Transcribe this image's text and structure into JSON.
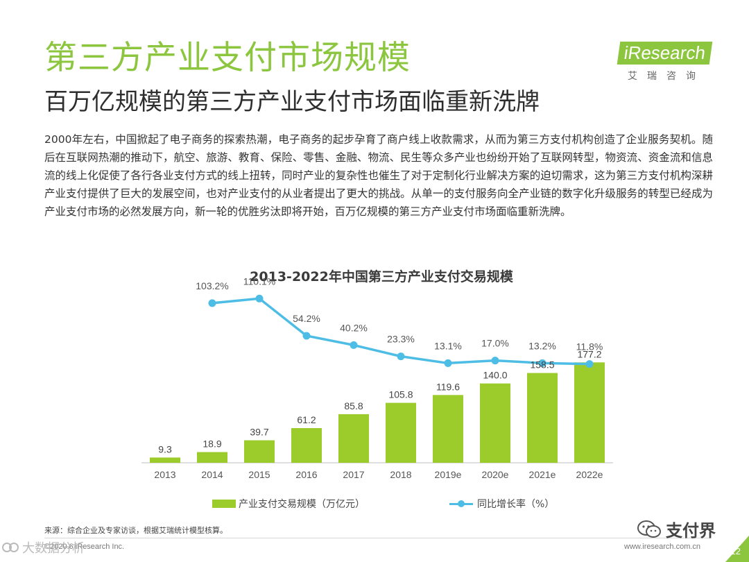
{
  "page": {
    "title": "第三方产业支付市场规模",
    "subtitle": "百万亿规模的第三方产业支付市场面临重新洗牌",
    "body": "2000年左右，中国掀起了电子商务的探索热潮，电子商务的起步孕育了商户线上收款需求，从而为第三方支付机构创造了企业服务契机。随后在互联网热潮的推动下，航空、旅游、教育、保险、零售、金融、物流、民生等众多产业也纷纷开始了互联网转型，物资流、资金流和信息流的线上化促使了各行各业支付方式的线上扭转，同时产业的复杂性也催生了对于定制化行业解决方案的迫切需求，这为第三方支付机构深耕产业支付提供了巨大的发展空间，也对产业支付的从业者提出了更大的挑战。从单一的支付服务向全产业链的数字化升级服务的转型已经成为产业支付市场的必然发展方向，新一轮的优胜劣汰即将开始，百万亿规模的第三方产业支付市场面临重新洗牌。"
  },
  "logo": {
    "name": "iResearch",
    "cn": "艾瑞咨询"
  },
  "chart_data": {
    "type": "bar",
    "title": "2013-2022年中国第三方产业支付交易规模",
    "categories": [
      "2013",
      "2014",
      "2015",
      "2016",
      "2017",
      "2018",
      "2019e",
      "2020e",
      "2021e",
      "2022e"
    ],
    "series": [
      {
        "name": "产业支付交易规模（万亿元）",
        "type": "bar",
        "color": "#9ccc2c",
        "values": [
          9.3,
          18.9,
          39.7,
          61.2,
          85.8,
          105.8,
          119.6,
          140.0,
          158.5,
          177.2
        ],
        "labels": [
          "9.3",
          "18.9",
          "39.7",
          "61.2",
          "85.8",
          "105.8",
          "119.6",
          "140.0",
          "158.5",
          "177.2"
        ]
      },
      {
        "name": "同比增长率（%）",
        "type": "line",
        "color": "#4dbde5",
        "values": [
          null,
          103.2,
          110.1,
          54.2,
          40.2,
          23.3,
          13.1,
          17.0,
          13.2,
          11.8
        ],
        "labels": [
          "",
          "103.2%",
          "110.1%",
          "54.2%",
          "40.2%",
          "23.3%",
          "13.1%",
          "17.0%",
          "13.2%",
          "11.8%"
        ]
      }
    ],
    "ylim": [
      0,
      180
    ],
    "y2lim": [
      0,
      120
    ],
    "legend": "bottom"
  },
  "footer": {
    "source": "来源：综合企业及专家访谈，根据艾瑞统计模型核算。",
    "copyright": "©2020.6 iResearch Inc.",
    "website": "www.iresearch.com.cn",
    "page_number": "12",
    "wechat": "支付界",
    "watermark": "大数据分析"
  }
}
